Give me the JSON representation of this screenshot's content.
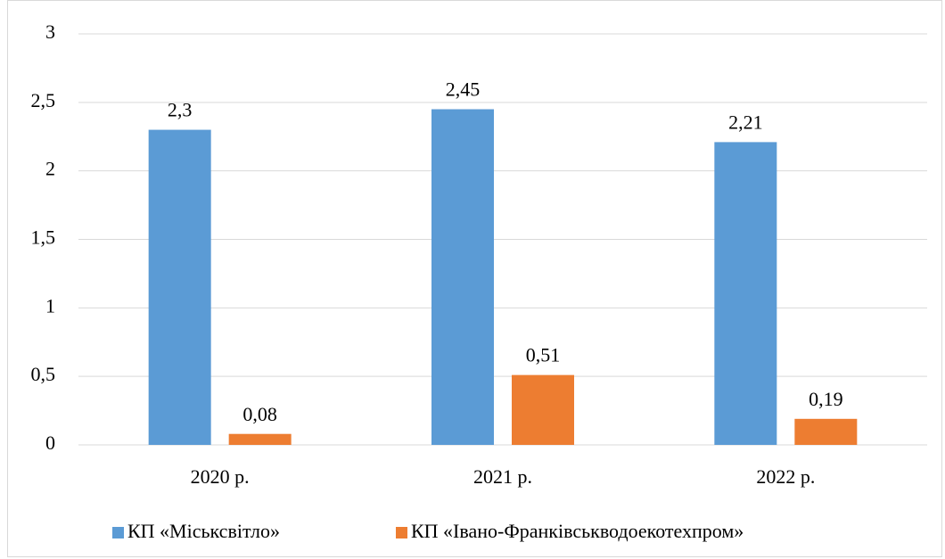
{
  "chart_data": {
    "type": "bar",
    "categories": [
      "2020 р.",
      "2021 р.",
      "2022 р."
    ],
    "series": [
      {
        "name": "КП «Міськсвітло»",
        "color": "#5b9bd5",
        "values": [
          2.3,
          2.45,
          2.21
        ],
        "value_labels": [
          "2,3",
          "2,45",
          "2,21"
        ]
      },
      {
        "name": "КП «Івано-Франківськводоекотехпром»",
        "color": "#ed7d31",
        "values": [
          0.08,
          0.51,
          0.19
        ],
        "value_labels": [
          "0,08",
          "0,51",
          "0,19"
        ]
      }
    ],
    "ylim": [
      0,
      3
    ],
    "yticks": [
      0,
      {
        "value": 0.5,
        "label": "0,5"
      },
      1,
      {
        "value": 1.5,
        "label": "1,5"
      },
      2,
      {
        "value": 2.5,
        "label": "2,5"
      },
      3
    ],
    "grid": true,
    "legend": "bottom"
  }
}
